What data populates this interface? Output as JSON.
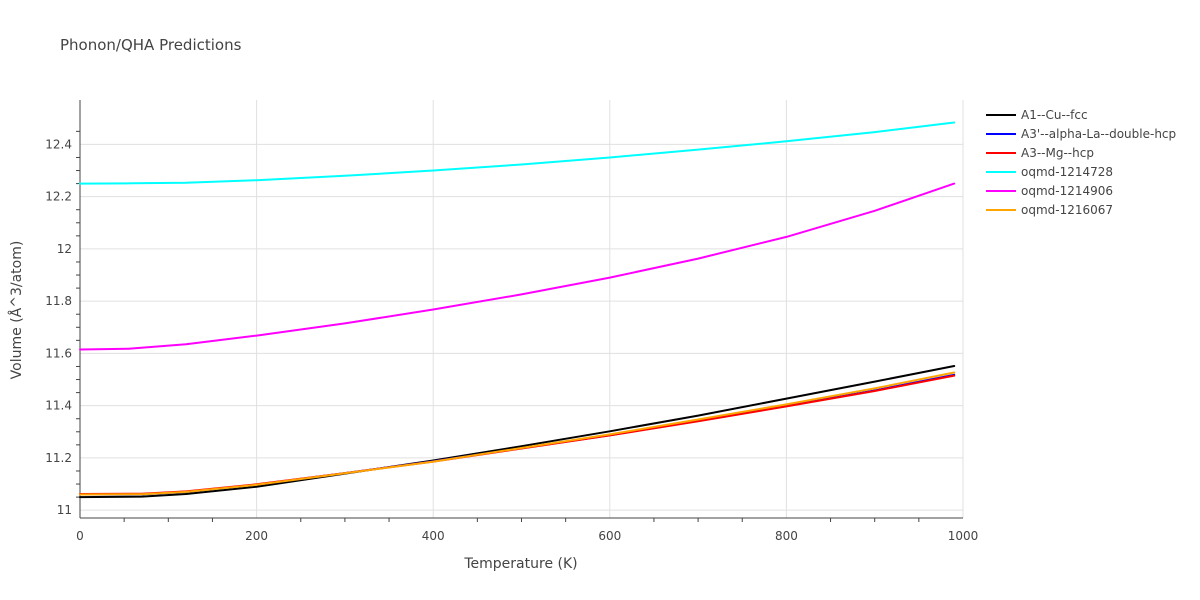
{
  "chart_data": {
    "type": "line",
    "title": "Phonon/QHA Predictions",
    "xlabel": "Temperature (K)",
    "ylabel": "Volume (Å^3/atom)",
    "xlim": [
      0,
      1000
    ],
    "ylim": [
      10.97,
      12.57
    ],
    "xticks": [
      0,
      200,
      400,
      600,
      800,
      1000
    ],
    "yticks": [
      11,
      11.2,
      11.4,
      11.6,
      11.8,
      12,
      12.2,
      12.4
    ],
    "ytick_labels": [
      "11",
      "11.2",
      "11.4",
      "11.6",
      "11.8",
      "12",
      "12.2",
      "12.4"
    ],
    "grid": true,
    "legend_position": "right",
    "series": [
      {
        "name": "A1--Cu--fcc",
        "color": "#000000",
        "x": [
          0,
          70,
          120,
          200,
          300,
          400,
          500,
          600,
          700,
          800,
          900,
          990
        ],
        "y": [
          11.05,
          11.052,
          11.062,
          11.09,
          11.14,
          11.19,
          11.245,
          11.302,
          11.362,
          11.427,
          11.492,
          11.552
        ]
      },
      {
        "name": "A3'--alpha-La--double-hcp",
        "color": "#0000ff",
        "x": [
          0,
          70,
          120,
          200,
          300,
          400,
          500,
          600,
          700,
          800,
          900,
          990
        ],
        "y": [
          11.06,
          11.061,
          11.07,
          11.098,
          11.142,
          11.187,
          11.237,
          11.287,
          11.342,
          11.399,
          11.458,
          11.518
        ]
      },
      {
        "name": "A3--Mg--hcp",
        "color": "#ff0000",
        "x": [
          0,
          70,
          120,
          200,
          300,
          400,
          500,
          600,
          700,
          800,
          900,
          990
        ],
        "y": [
          11.062,
          11.063,
          11.072,
          11.099,
          11.142,
          11.186,
          11.236,
          11.286,
          11.34,
          11.397,
          11.456,
          11.515
        ]
      },
      {
        "name": "oqmd-1214728",
        "color": "#00ffff",
        "x": [
          0,
          60,
          120,
          200,
          300,
          400,
          500,
          600,
          700,
          800,
          900,
          990
        ],
        "y": [
          12.25,
          12.251,
          12.253,
          12.263,
          12.28,
          12.3,
          12.323,
          12.35,
          12.38,
          12.412,
          12.447,
          12.484
        ]
      },
      {
        "name": "oqmd-1214906",
        "color": "#ff00ff",
        "x": [
          0,
          55,
          120,
          200,
          300,
          400,
          500,
          600,
          700,
          800,
          900,
          990
        ],
        "y": [
          11.615,
          11.618,
          11.635,
          11.668,
          11.715,
          11.768,
          11.826,
          11.89,
          11.963,
          12.046,
          12.146,
          12.25
        ]
      },
      {
        "name": "oqmd-1216067",
        "color": "#ffa500",
        "x": [
          0,
          70,
          120,
          200,
          300,
          400,
          500,
          600,
          700,
          800,
          900,
          990
        ],
        "y": [
          11.06,
          11.061,
          11.07,
          11.097,
          11.141,
          11.186,
          11.238,
          11.29,
          11.347,
          11.405,
          11.466,
          11.527
        ]
      }
    ]
  }
}
